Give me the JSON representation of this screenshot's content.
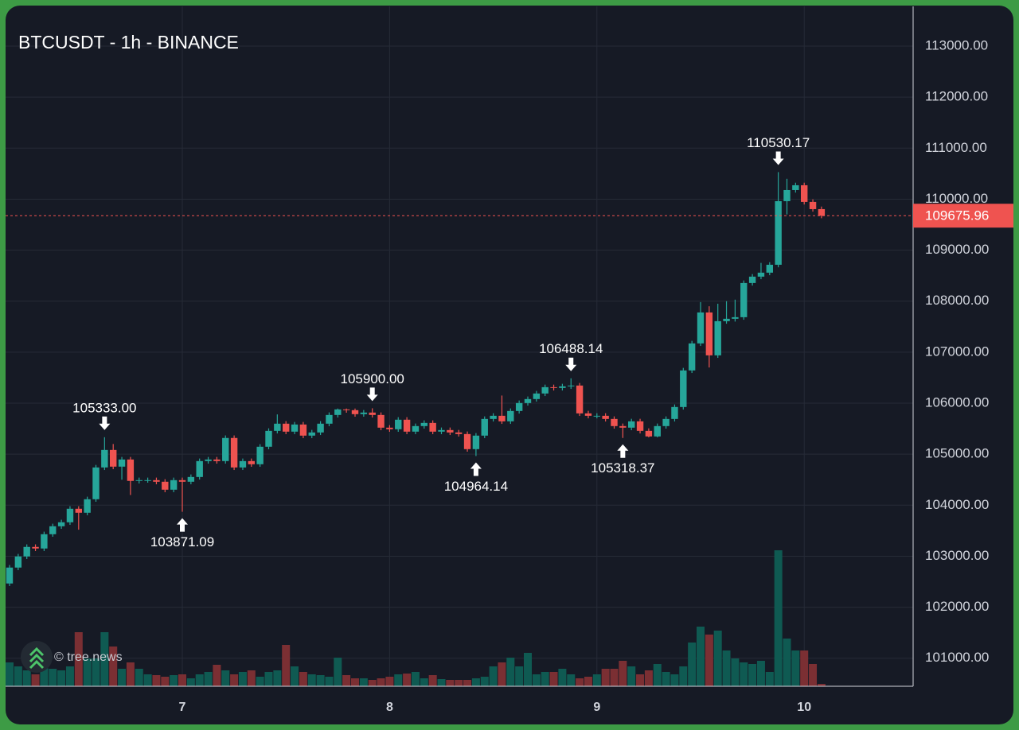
{
  "chart_data": {
    "type": "candlestick",
    "title": "BTCUSDT - 1h - BINANCE",
    "watermark": "© tree.news",
    "categories": [
      null,
      null,
      null,
      null,
      null,
      null,
      null,
      null,
      null,
      null,
      null,
      null,
      null,
      null,
      null,
      null,
      null,
      null,
      null,
      null,
      "7",
      null,
      null,
      null,
      null,
      null,
      null,
      null,
      null,
      null,
      null,
      null,
      null,
      null,
      null,
      null,
      null,
      null,
      null,
      null,
      null,
      null,
      null,
      null,
      "8",
      null,
      null,
      null,
      null,
      null,
      null,
      null,
      null,
      null,
      null,
      null,
      null,
      null,
      null,
      null,
      null,
      null,
      null,
      null,
      null,
      null,
      null,
      null,
      "9",
      null,
      null,
      null,
      null,
      null,
      null,
      null,
      null,
      null,
      null,
      null,
      null,
      null,
      null,
      null,
      null,
      null,
      null,
      null,
      null,
      null,
      null,
      null,
      "10",
      null,
      null
    ],
    "open": [
      102465,
      102777,
      102995,
      103182,
      103151,
      103431,
      103587,
      103665,
      103930,
      103852,
      104117,
      104740,
      105083,
      104756,
      104896,
      104476,
      104491,
      104491,
      104460,
      104304,
      104491,
      104460,
      104553,
      104865,
      104896,
      104865,
      105318,
      104740,
      104865,
      104803,
      105146,
      105457,
      105598,
      105442,
      105582,
      105364,
      105426,
      105598,
      105769,
      105878,
      105863,
      105785,
      105816,
      105769,
      105520,
      105489,
      105676,
      105442,
      105551,
      105613,
      105442,
      105473,
      105426,
      105395,
      105099,
      105364,
      105691,
      105753,
      105644,
      105847,
      106003,
      106081,
      106190,
      106314,
      106299,
      106330,
      106346,
      105800,
      105753,
      105753,
      105691,
      105551,
      105520,
      105644,
      105457,
      105348,
      105551,
      105691,
      105925,
      106642,
      107172,
      107779,
      106938,
      107608,
      107655,
      107686,
      108356,
      108481,
      108559,
      108714,
      109961,
      110179,
      110273,
      109946,
      109805
    ],
    "high": [
      102827,
      103045,
      103232,
      103232,
      103481,
      103637,
      103715,
      103980,
      103980,
      104167,
      104790,
      105333,
      105200,
      104946,
      104946,
      104541,
      104541,
      104541,
      104510,
      104541,
      104541,
      104603,
      104915,
      104946,
      104946,
      105368,
      105368,
      104915,
      104915,
      105196,
      105507,
      105780,
      105648,
      105632,
      105632,
      105476,
      105648,
      105819,
      105895,
      105895,
      105895,
      105866,
      105900,
      105819,
      105570,
      105726,
      105726,
      105601,
      105663,
      105663,
      105523,
      105523,
      105476,
      105445,
      105414,
      105741,
      105803,
      106150,
      105897,
      106053,
      106131,
      106240,
      106364,
      106364,
      106380,
      106488,
      106396,
      105850,
      105803,
      105803,
      105741,
      105601,
      105694,
      105694,
      105507,
      105601,
      105741,
      105975,
      106692,
      107222,
      107982,
      107900,
      107950,
      108000,
      108030,
      108406,
      108531,
      108750,
      108764,
      110530,
      110400,
      110323,
      110323,
      109996,
      109855
    ],
    "low": [
      102415,
      102727,
      102945,
      103101,
      103101,
      103381,
      103537,
      103615,
      103520,
      103802,
      104067,
      104690,
      104706,
      104500,
      104200,
      104426,
      104441,
      104410,
      104254,
      104254,
      103871,
      104410,
      104503,
      104815,
      104815,
      104815,
      104690,
      104690,
      104753,
      104753,
      105096,
      105407,
      105392,
      105392,
      105314,
      105314,
      105376,
      105548,
      105719,
      105813,
      105735,
      105735,
      105719,
      105470,
      105439,
      105439,
      105392,
      105392,
      105501,
      105392,
      105392,
      105376,
      105345,
      105049,
      104964,
      105314,
      105641,
      105594,
      105594,
      105797,
      105953,
      106031,
      106140,
      106249,
      106249,
      106280,
      105750,
      105703,
      105703,
      105641,
      105501,
      105318,
      105470,
      105407,
      105330,
      105330,
      105501,
      105641,
      105875,
      106592,
      107122,
      106700,
      106888,
      107558,
      107600,
      107636,
      108306,
      108431,
      108509,
      108664,
      109700,
      110129,
      109896,
      109755,
      109626
    ],
    "close": [
      102777,
      102995,
      103182,
      103151,
      103431,
      103587,
      103665,
      103930,
      103852,
      104117,
      104740,
      105083,
      104756,
      104896,
      104476,
      104491,
      104491,
      104460,
      104304,
      104491,
      104460,
      104553,
      104865,
      104896,
      104865,
      105318,
      104740,
      104865,
      104803,
      105146,
      105457,
      105598,
      105442,
      105582,
      105364,
      105426,
      105598,
      105769,
      105878,
      105863,
      105785,
      105816,
      105769,
      105520,
      105489,
      105676,
      105442,
      105551,
      105613,
      105442,
      105473,
      105426,
      105395,
      105099,
      105364,
      105691,
      105753,
      105644,
      105847,
      106003,
      106081,
      106190,
      106314,
      106299,
      106330,
      106346,
      105800,
      105753,
      105753,
      105691,
      105551,
      105520,
      105644,
      105457,
      105348,
      105551,
      105691,
      105925,
      106642,
      107172,
      107779,
      106938,
      107608,
      107655,
      107686,
      108356,
      108481,
      108559,
      108714,
      109961,
      110179,
      110273,
      109946,
      109805,
      109675.96
    ],
    "volumes": [
      30,
      25,
      20,
      15,
      28,
      22,
      20,
      25,
      68,
      35,
      35,
      68,
      50,
      22,
      30,
      22,
      15,
      14,
      12,
      14,
      15,
      10,
      15,
      18,
      27,
      20,
      15,
      18,
      20,
      12,
      18,
      20,
      52,
      25,
      18,
      15,
      14,
      12,
      36,
      14,
      10,
      10,
      8,
      10,
      12,
      15,
      16,
      18,
      10,
      14,
      9,
      8,
      8,
      8,
      10,
      12,
      25,
      30,
      36,
      25,
      42,
      15,
      18,
      18,
      22,
      15,
      10,
      12,
      15,
      22,
      22,
      32,
      25,
      15,
      20,
      28,
      18,
      15,
      25,
      55,
      75,
      65,
      70,
      45,
      35,
      30,
      28,
      32,
      18,
      171,
      60,
      45,
      45,
      28,
      3
    ],
    "up_color": "#26a69a",
    "down_color": "#ef5350",
    "volume_up_color": "#0f5a52",
    "volume_down_color": "#7b2f33",
    "ylim": [
      100450,
      113780
    ],
    "y2lim": [
      0,
      855
    ],
    "yticks": [
      {
        "value": 101000,
        "label": "101000.00"
      },
      {
        "value": 102000,
        "label": "102000.00"
      },
      {
        "value": 103000,
        "label": "103000.00"
      },
      {
        "value": 104000,
        "label": "104000.00"
      },
      {
        "value": 105000,
        "label": "105000.00"
      },
      {
        "value": 106000,
        "label": "106000.00"
      },
      {
        "value": 107000,
        "label": "107000.00"
      },
      {
        "value": 108000,
        "label": "108000.00"
      },
      {
        "value": 109000,
        "label": "109000.00"
      },
      {
        "value": 110000,
        "label": "110000.00"
      },
      {
        "value": 111000,
        "label": "111000.00"
      },
      {
        "value": 112000,
        "label": "112000.00"
      },
      {
        "value": 113000,
        "label": "113000.00"
      }
    ],
    "grid": true,
    "annotations": [
      {
        "index": 11,
        "value": 105333,
        "label": "105333.00",
        "side": "above"
      },
      {
        "index": 20,
        "value": 103871.09,
        "label": "103871.09",
        "side": "below"
      },
      {
        "index": 42,
        "value": 105900,
        "label": "105900.00",
        "side": "above"
      },
      {
        "index": 54,
        "value": 104964.14,
        "label": "104964.14",
        "side": "below"
      },
      {
        "index": 65,
        "value": 106488.14,
        "label": "106488.14",
        "side": "above"
      },
      {
        "index": 71,
        "value": 105318.37,
        "label": "105318.37",
        "side": "below"
      },
      {
        "index": 89,
        "value": 110530.17,
        "label": "110530.17",
        "side": "above"
      }
    ],
    "last_price": {
      "value": 109675.96,
      "label": "109675.96",
      "color": "#ef5350"
    }
  }
}
